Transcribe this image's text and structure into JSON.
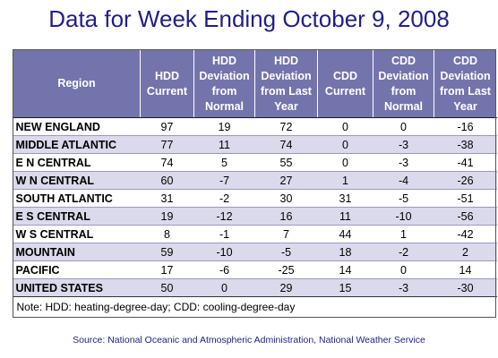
{
  "title": "Data for Week Ending October 9, 2008",
  "headers": [
    "Region",
    "HDD Current",
    "HDD Deviation from Normal",
    "HDD Deviation from Last Year",
    "CDD Current",
    "CDD Deviation from Normal",
    "CDD Deviation from Last Year"
  ],
  "rows": [
    [
      "NEW ENGLAND",
      "97",
      "19",
      "72",
      "0",
      "0",
      "-16"
    ],
    [
      "MIDDLE ATLANTIC",
      "77",
      "11",
      "74",
      "0",
      "-3",
      "-38"
    ],
    [
      "E N CENTRAL",
      "74",
      "5",
      "55",
      "0",
      "-3",
      "-41"
    ],
    [
      "W N CENTRAL",
      "60",
      "-7",
      "27",
      "1",
      "-4",
      "-26"
    ],
    [
      "SOUTH ATLANTIC",
      "31",
      "-2",
      "30",
      "31",
      "-5",
      "-51"
    ],
    [
      "E S CENTRAL",
      "19",
      "-12",
      "16",
      "11",
      "-10",
      "-56"
    ],
    [
      "W S CENTRAL",
      "8",
      "-1",
      "7",
      "44",
      "1",
      "-42"
    ],
    [
      "MOUNTAIN",
      "59",
      "-10",
      "-5",
      "18",
      "-2",
      "2"
    ],
    [
      "PACIFIC",
      "17",
      "-6",
      "-25",
      "14",
      "0",
      "14"
    ],
    [
      "UNITED STATES",
      "50",
      "0",
      "29",
      "15",
      "-3",
      "-30"
    ]
  ],
  "note": "Note: HDD: heating-degree-day; CDD: cooling-degree-day",
  "source": "Source:  National Oceanic and Atmospheric Administration, National Weather Service",
  "colors": {
    "title": "#1f1f87",
    "header_bg": "#7474ac",
    "alt_row": "#dadaec"
  }
}
